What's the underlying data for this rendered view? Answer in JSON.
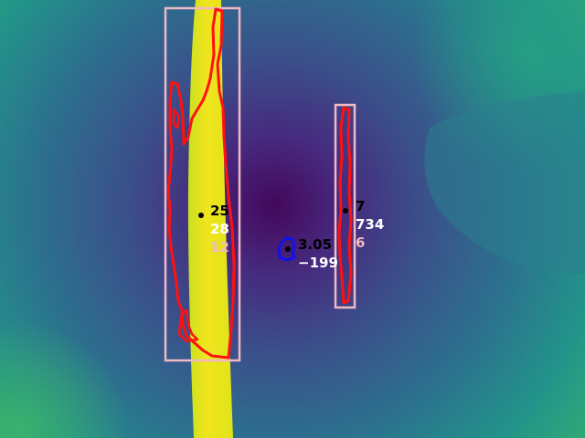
{
  "colors": {
    "box": "#f2b8c6",
    "contour_red": "#ff1111",
    "contour_blue": "#1111ee",
    "point": "#000000",
    "label_black": "#000000",
    "label_white": "#ffffff",
    "label_pink": "#f2b8c6"
  },
  "detections": [
    {
      "name": "left",
      "contour_color": "red",
      "labels": [
        "25",
        "28",
        "12"
      ]
    },
    {
      "name": "middle",
      "contour_color": "blue",
      "labels": [
        "3.05",
        "−199"
      ]
    },
    {
      "name": "right",
      "contour_color": "red",
      "labels": [
        "7",
        "734",
        "6"
      ]
    }
  ]
}
